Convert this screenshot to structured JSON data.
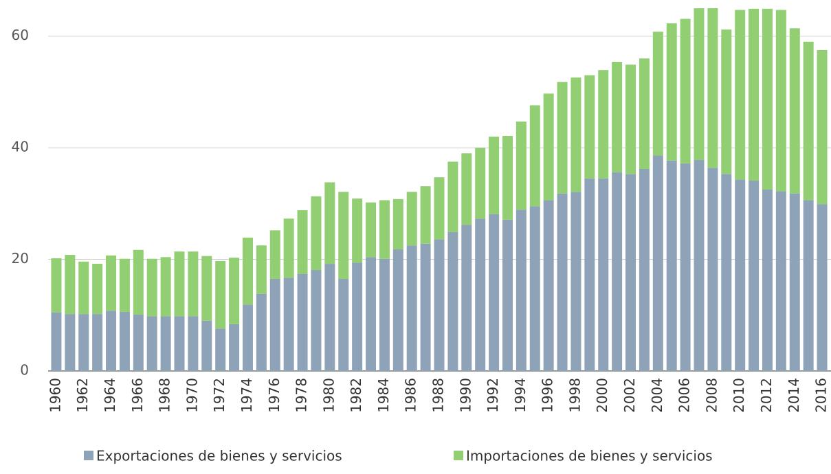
{
  "chart_data": {
    "type": "stacked-bar",
    "categories": [
      "1960",
      null,
      "1962",
      null,
      "1964",
      null,
      "1966",
      null,
      "1968",
      null,
      "1970",
      null,
      "1972",
      null,
      "1974",
      null,
      "1976",
      null,
      "1978",
      null,
      "1980",
      null,
      "1982",
      null,
      "1984",
      null,
      "1986",
      null,
      "1988",
      null,
      "1990",
      null,
      "1992",
      null,
      "1994",
      null,
      "1996",
      null,
      "1998",
      null,
      "2000",
      null,
      "2002",
      null,
      "2004",
      null,
      "2006",
      null,
      "2008",
      null,
      "2010",
      null,
      "2012",
      null,
      "2014",
      null,
      "2016"
    ],
    "series": [
      {
        "name": "Exportaciones de bienes y servicios",
        "color": "#8fa3b8",
        "values": [
          10.5,
          10.2,
          10.2,
          10.2,
          10.8,
          10.6,
          10.1,
          9.8,
          9.8,
          9.8,
          9.8,
          9.0,
          7.6,
          8.4,
          11.9,
          13.8,
          16.5,
          16.7,
          17.4,
          18.1,
          19.2,
          16.5,
          19.4,
          20.4,
          20.1,
          21.8,
          22.5,
          22.8,
          23.6,
          24.9,
          26.2,
          27.3,
          28.1,
          27.1,
          28.9,
          29.5,
          30.6,
          31.8,
          32.1,
          34.5,
          34.5,
          35.6,
          35.3,
          36.2,
          38.6,
          37.7,
          37.2,
          37.8,
          36.4,
          35.3,
          34.3,
          34.1,
          32.5,
          32.2,
          31.8,
          30.6,
          29.9
        ]
      },
      {
        "name": "Importaciones de bienes y servicios",
        "color": "#92ce72",
        "values": [
          9.7,
          10.6,
          9.4,
          9.0,
          9.9,
          9.5,
          11.6,
          10.3,
          10.6,
          11.6,
          11.6,
          11.6,
          12.1,
          11.9,
          12.0,
          8.7,
          8.7,
          10.6,
          11.4,
          13.2,
          14.6,
          15.6,
          11.5,
          9.8,
          10.5,
          9.0,
          9.6,
          10.3,
          11.1,
          12.6,
          12.8,
          12.7,
          13.9,
          15.0,
          15.8,
          18.1,
          19.1,
          20.0,
          20.5,
          18.5,
          19.4,
          19.8,
          19.6,
          19.8,
          22.2,
          24.6,
          25.9,
          27.2,
          28.6,
          25.9,
          30.4,
          30.8,
          32.4,
          32.5,
          29.6,
          28.4,
          27.6
        ]
      }
    ],
    "ylim": [
      0,
      65
    ],
    "yticks": [
      0,
      20,
      40,
      60
    ],
    "grid": true
  }
}
